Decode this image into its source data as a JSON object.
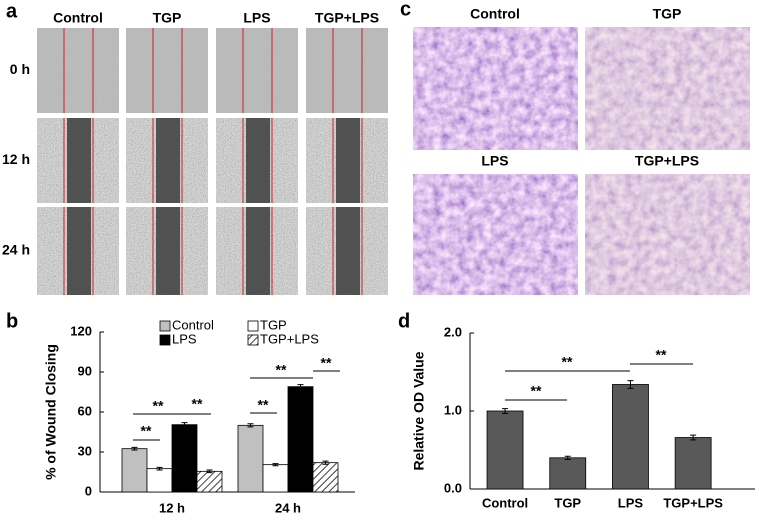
{
  "figure": {
    "panels": [
      "a",
      "b",
      "c",
      "d"
    ],
    "wound": {
      "columns": [
        "Control",
        "TGP",
        "LPS",
        "TGP+LPS"
      ],
      "rows": [
        "0 h",
        "12 h",
        "24 h"
      ]
    },
    "transwell": {
      "labels": [
        "Control",
        "TGP",
        "LPS",
        "TGP+LPS"
      ]
    }
  },
  "chart_data": [
    {
      "type": "bar",
      "ylabel": "% of Wound Closing",
      "categories": [
        "12 h",
        "24 h"
      ],
      "ylim": [
        0,
        120
      ],
      "yticks": [
        0,
        30,
        60,
        90,
        120
      ],
      "series": [
        {
          "name": "Control",
          "color": "#c0c0c0",
          "values": [
            32.5,
            50
          ],
          "errors": [
            1,
            1.2
          ]
        },
        {
          "name": "TGP",
          "color": "#ffffff",
          "values": [
            17.5,
            20.5
          ],
          "errors": [
            1,
            0.8
          ]
        },
        {
          "name": "LPS",
          "color": "#000000",
          "values": [
            50.5,
            79
          ],
          "errors": [
            1.5,
            1.5
          ]
        },
        {
          "name": "TGP+LPS",
          "color": "#ffffff",
          "pattern": "hatch",
          "values": [
            15.5,
            22
          ],
          "errors": [
            1,
            1.2
          ]
        }
      ],
      "annotations": [
        "**",
        "**",
        "**",
        "**",
        "**",
        "**"
      ]
    },
    {
      "type": "bar",
      "ylabel": "Relative OD Value",
      "categories": [
        "Control",
        "TGP",
        "LPS",
        "TGP+LPS"
      ],
      "values": [
        1.0,
        0.4,
        1.34,
        0.66
      ],
      "errors": [
        0.03,
        0.02,
        0.05,
        0.03
      ],
      "color": "#595959",
      "ylim": [
        0,
        2.0
      ],
      "yticks": [
        {
          "value": 0,
          "label": "0.0"
        },
        {
          "value": 1,
          "label": "1.0"
        },
        {
          "value": 2,
          "label": "2.0"
        }
      ],
      "annotations": [
        "**",
        "**",
        "**"
      ]
    }
  ]
}
